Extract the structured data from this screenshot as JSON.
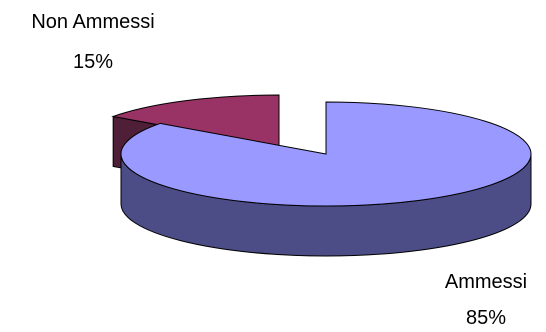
{
  "chart_data": {
    "type": "pie",
    "style": "3d-exploded",
    "slices": [
      {
        "label": "Ammessi",
        "value_label": "85%",
        "value": 85,
        "color": "#9999ff",
        "side_color": "#4c4c86"
      },
      {
        "label": "Non Ammessi",
        "value_label": "15%",
        "value": 15,
        "color": "#993366",
        "side_color": "#4f1f37"
      }
    ]
  }
}
